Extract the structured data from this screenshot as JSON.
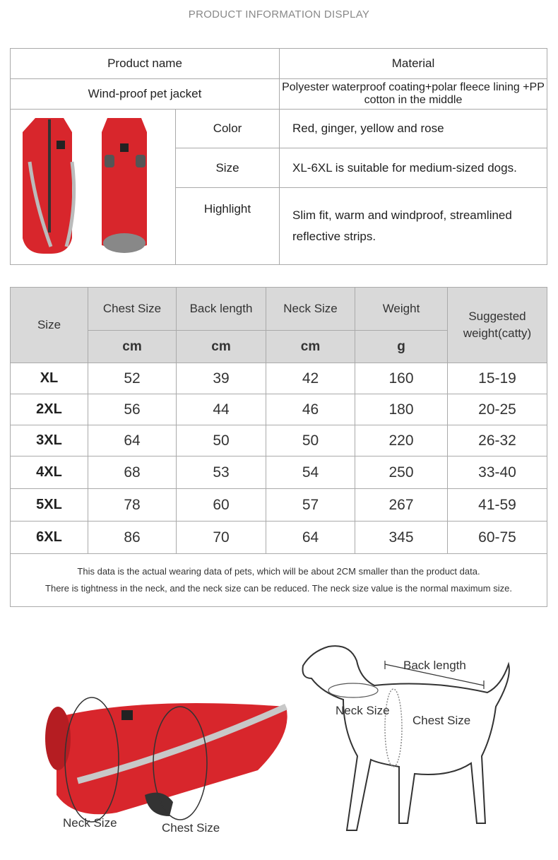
{
  "title": "PRODUCT INFORMATION DISPLAY",
  "info_table": {
    "product_name_label": "Product name",
    "material_label": "Material",
    "product_name": "Wind-proof pet jacket",
    "material": "Polyester waterproof coating+polar fleece lining +PP cotton in the middle",
    "rows": [
      {
        "label": "Color",
        "value": "Red, ginger, yellow and rose"
      },
      {
        "label": "Size",
        "value": "XL-6XL is suitable for medium-sized dogs."
      },
      {
        "label": "Highlight",
        "value": "Slim fit, warm and windproof, streamlined reflective strips."
      }
    ]
  },
  "size_table": {
    "headers": [
      "Size",
      "Chest Size",
      "Back length",
      "Neck Size",
      "Weight",
      "Suggested weight(catty)"
    ],
    "units": [
      "cm",
      "cm",
      "cm",
      "g"
    ],
    "rows": [
      [
        "XL",
        "52",
        "39",
        "42",
        "160",
        "15-19"
      ],
      [
        "2XL",
        "56",
        "44",
        "46",
        "180",
        "20-25"
      ],
      [
        "3XL",
        "64",
        "50",
        "50",
        "220",
        "26-32"
      ],
      [
        "4XL",
        "68",
        "53",
        "54",
        "250",
        "33-40"
      ],
      [
        "5XL",
        "78",
        "60",
        "57",
        "267",
        "41-59"
      ],
      [
        "6XL",
        "86",
        "70",
        "64",
        "345",
        "60-75"
      ]
    ],
    "note_lines": [
      "This data is the actual wearing data of pets, which will be about 2CM smaller than the product data.",
      "There is tightness in the neck, and the neck size can be reduced. The neck size value is the normal maximum size."
    ]
  },
  "diagram": {
    "jacket_labels": {
      "neck": "Neck Size",
      "chest": "Chest Size"
    },
    "dog_labels": {
      "back": "Back length",
      "neck": "Neck Size",
      "chest": "Chest Size"
    }
  },
  "colors": {
    "jacket_red": "#d8262c",
    "reflective": "#b8b8b8",
    "header_bg": "#d9d9d9"
  }
}
